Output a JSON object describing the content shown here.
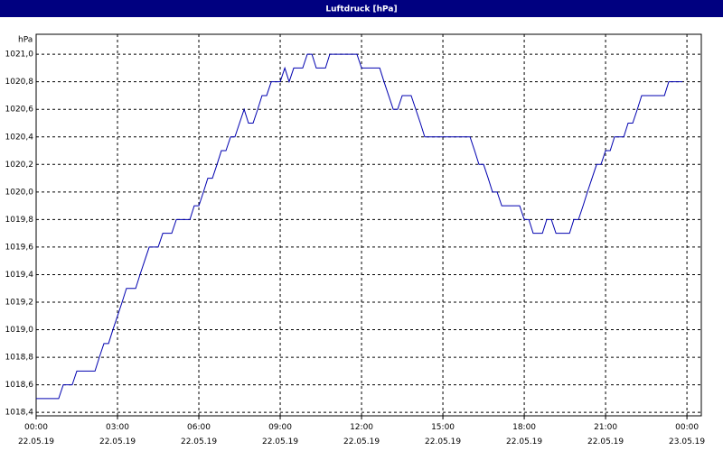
{
  "chart_data": {
    "type": "line",
    "title": "Luftdruck [hPa]",
    "y_label": "hPa",
    "color": "#0000b0",
    "grid": true,
    "xlim": [
      0,
      24.53
    ],
    "ylim": [
      1018.375,
      1021.145
    ],
    "xticks": [
      {
        "value": 0,
        "label": "00:00 22.05.19"
      },
      {
        "value": 3,
        "label": "03:00 22.05.19"
      },
      {
        "value": 6,
        "label": "06:00 22.05.19"
      },
      {
        "value": 9,
        "label": "09:00 22.05.19"
      },
      {
        "value": 12,
        "label": "12:00 22.05.19"
      },
      {
        "value": 15,
        "label": "15:00 22.05.19"
      },
      {
        "value": 18,
        "label": "18:00 22.05.19"
      },
      {
        "value": 21,
        "label": "21:00 22.05.19"
      },
      {
        "value": 24,
        "label": "00:00 23.05.19"
      }
    ],
    "yticks": [
      {
        "value": 1018.4,
        "label": "1018,4"
      },
      {
        "value": 1018.6,
        "label": "1018,6"
      },
      {
        "value": 1018.8,
        "label": "1018,8"
      },
      {
        "value": 1019.0,
        "label": "1019,0"
      },
      {
        "value": 1019.2,
        "label": "1019,2"
      },
      {
        "value": 1019.4,
        "label": "1019,4"
      },
      {
        "value": 1019.6,
        "label": "1019,6"
      },
      {
        "value": 1019.8,
        "label": "1019,8"
      },
      {
        "value": 1020.0,
        "label": "1020,0"
      },
      {
        "value": 1020.2,
        "label": "1020,2"
      },
      {
        "value": 1020.4,
        "label": "1020,4"
      },
      {
        "value": 1020.6,
        "label": "1020,6"
      },
      {
        "value": 1020.8,
        "label": "1020,8"
      },
      {
        "value": 1021.0,
        "label": "1021,0"
      }
    ],
    "x": [
      0,
      0.83,
      1.0,
      1.33,
      1.5,
      2.17,
      2.33,
      2.5,
      2.67,
      2.83,
      3.0,
      3.17,
      3.33,
      3.67,
      3.83,
      4.0,
      4.17,
      4.5,
      4.67,
      5.0,
      5.17,
      5.67,
      5.83,
      6.0,
      6.17,
      6.33,
      6.5,
      6.67,
      6.83,
      7.0,
      7.17,
      7.33,
      7.5,
      7.67,
      7.83,
      8.0,
      8.17,
      8.33,
      8.5,
      8.67,
      9.0,
      9.17,
      9.33,
      9.5,
      9.83,
      10.0,
      10.17,
      10.33,
      10.67,
      10.83,
      11.83,
      12.0,
      12.67,
      12.83,
      13.0,
      13.17,
      13.33,
      13.5,
      13.83,
      14.0,
      14.17,
      14.33,
      16.0,
      16.17,
      16.33,
      16.5,
      16.67,
      16.83,
      17.0,
      17.17,
      17.83,
      18.0,
      18.17,
      18.33,
      18.67,
      18.83,
      19.0,
      19.17,
      19.67,
      19.83,
      20.0,
      20.17,
      20.33,
      20.5,
      20.67,
      20.83,
      21.0,
      21.17,
      21.33,
      21.67,
      21.83,
      22.0,
      22.17,
      22.33,
      23.17,
      23.33,
      23.83
    ],
    "values": [
      1018.5,
      1018.5,
      1018.6,
      1018.6,
      1018.7,
      1018.7,
      1018.8,
      1018.9,
      1018.9,
      1019.0,
      1019.1,
      1019.2,
      1019.3,
      1019.3,
      1019.4,
      1019.5,
      1019.6,
      1019.6,
      1019.7,
      1019.7,
      1019.8,
      1019.8,
      1019.9,
      1019.9,
      1020.0,
      1020.1,
      1020.1,
      1020.2,
      1020.3,
      1020.3,
      1020.4,
      1020.4,
      1020.5,
      1020.6,
      1020.5,
      1020.5,
      1020.6,
      1020.7,
      1020.7,
      1020.8,
      1020.8,
      1020.9,
      1020.8,
      1020.9,
      1020.9,
      1021.0,
      1021.0,
      1020.9,
      1020.9,
      1021.0,
      1021.0,
      1020.9,
      1020.9,
      1020.8,
      1020.7,
      1020.6,
      1020.6,
      1020.7,
      1020.7,
      1020.6,
      1020.5,
      1020.4,
      1020.4,
      1020.3,
      1020.2,
      1020.2,
      1020.1,
      1020.0,
      1020.0,
      1019.9,
      1019.9,
      1019.8,
      1019.8,
      1019.7,
      1019.7,
      1019.8,
      1019.8,
      1019.7,
      1019.7,
      1019.8,
      1019.8,
      1019.9,
      1020.0,
      1020.1,
      1020.2,
      1020.2,
      1020.3,
      1020.3,
      1020.4,
      1020.4,
      1020.5,
      1020.5,
      1020.6,
      1020.7,
      1020.7,
      1020.8,
      1020.8
    ]
  }
}
